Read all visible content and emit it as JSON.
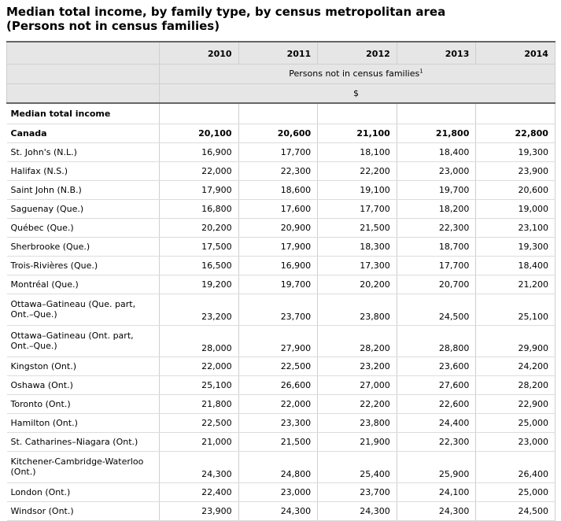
{
  "title": {
    "line1": "Median total income, by family type, by census metropolitan area",
    "line2": "(Persons not in census families)"
  },
  "header": {
    "years": [
      "2010",
      "2011",
      "2012",
      "2013",
      "2014"
    ],
    "subheader": "Persons not in census families",
    "subheader_footnote": "1",
    "unit": "$"
  },
  "section_label": "Median total income",
  "rows": [
    {
      "label": "Canada",
      "values": [
        "20,100",
        "20,600",
        "21,100",
        "21,800",
        "22,800"
      ],
      "bold": true,
      "tall": false
    },
    {
      "label": "St. John's (N.L.)",
      "values": [
        "16,900",
        "17,700",
        "18,100",
        "18,400",
        "19,300"
      ],
      "bold": false,
      "tall": false
    },
    {
      "label": "Halifax (N.S.)",
      "values": [
        "22,000",
        "22,300",
        "22,200",
        "23,000",
        "23,900"
      ],
      "bold": false,
      "tall": false
    },
    {
      "label": "Saint John (N.B.)",
      "values": [
        "17,900",
        "18,600",
        "19,100",
        "19,700",
        "20,600"
      ],
      "bold": false,
      "tall": false
    },
    {
      "label": "Saguenay (Que.)",
      "values": [
        "16,800",
        "17,600",
        "17,700",
        "18,200",
        "19,000"
      ],
      "bold": false,
      "tall": false
    },
    {
      "label": "Québec (Que.)",
      "values": [
        "20,200",
        "20,900",
        "21,500",
        "22,300",
        "23,100"
      ],
      "bold": false,
      "tall": false
    },
    {
      "label": "Sherbrooke (Que.)",
      "values": [
        "17,500",
        "17,900",
        "18,300",
        "18,700",
        "19,300"
      ],
      "bold": false,
      "tall": false
    },
    {
      "label": "Trois-Rivières (Que.)",
      "values": [
        "16,500",
        "16,900",
        "17,300",
        "17,700",
        "18,400"
      ],
      "bold": false,
      "tall": false
    },
    {
      "label": "Montréal (Que.)",
      "values": [
        "19,200",
        "19,700",
        "20,200",
        "20,700",
        "21,200"
      ],
      "bold": false,
      "tall": false
    },
    {
      "label": "Ottawa–Gatineau (Que. part, Ont.–Que.)",
      "values": [
        "23,200",
        "23,700",
        "23,800",
        "24,500",
        "25,100"
      ],
      "bold": false,
      "tall": true
    },
    {
      "label": "Ottawa–Gatineau (Ont. part, Ont.–Que.)",
      "values": [
        "28,000",
        "27,900",
        "28,200",
        "28,800",
        "29,900"
      ],
      "bold": false,
      "tall": true
    },
    {
      "label": "Kingston (Ont.)",
      "values": [
        "22,000",
        "22,500",
        "23,200",
        "23,600",
        "24,200"
      ],
      "bold": false,
      "tall": false
    },
    {
      "label": "Oshawa (Ont.)",
      "values": [
        "25,100",
        "26,600",
        "27,000",
        "27,600",
        "28,200"
      ],
      "bold": false,
      "tall": false
    },
    {
      "label": "Toronto (Ont.)",
      "values": [
        "21,800",
        "22,000",
        "22,200",
        "22,600",
        "22,900"
      ],
      "bold": false,
      "tall": false
    },
    {
      "label": "Hamilton (Ont.)",
      "values": [
        "22,500",
        "23,300",
        "23,800",
        "24,400",
        "25,000"
      ],
      "bold": false,
      "tall": false
    },
    {
      "label": "St. Catharines–Niagara (Ont.)",
      "values": [
        "21,000",
        "21,500",
        "21,900",
        "22,300",
        "23,000"
      ],
      "bold": false,
      "tall": false
    },
    {
      "label": "Kitchener-Cambridge-Waterloo (Ont.)",
      "values": [
        "24,300",
        "24,800",
        "25,400",
        "25,900",
        "26,400"
      ],
      "bold": false,
      "tall": true
    },
    {
      "label": "London (Ont.)",
      "values": [
        "22,400",
        "23,000",
        "23,700",
        "24,100",
        "25,000"
      ],
      "bold": false,
      "tall": false
    },
    {
      "label": "Windsor (Ont.)",
      "values": [
        "23,900",
        "24,300",
        "24,300",
        "24,300",
        "24,500"
      ],
      "bold": false,
      "tall": false
    }
  ]
}
